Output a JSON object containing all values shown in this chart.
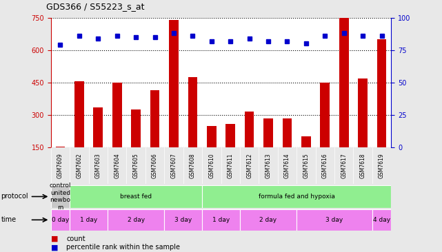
{
  "title": "GDS366 / S55223_s_at",
  "samples": [
    "GSM7609",
    "GSM7602",
    "GSM7603",
    "GSM7604",
    "GSM7605",
    "GSM7606",
    "GSM7607",
    "GSM7608",
    "GSM7610",
    "GSM7611",
    "GSM7612",
    "GSM7613",
    "GSM7614",
    "GSM7615",
    "GSM7616",
    "GSM7617",
    "GSM7618",
    "GSM7619"
  ],
  "counts": [
    155,
    455,
    335,
    450,
    325,
    415,
    740,
    475,
    250,
    260,
    315,
    285,
    285,
    200,
    450,
    750,
    470,
    650
  ],
  "percentiles": [
    79,
    86,
    84,
    86,
    85,
    85,
    88,
    86,
    82,
    82,
    84,
    82,
    82,
    80,
    86,
    88,
    86,
    86
  ],
  "ylim_left": [
    150,
    750
  ],
  "ylim_right": [
    0,
    100
  ],
  "yticks_left": [
    150,
    300,
    450,
    600,
    750
  ],
  "yticks_right": [
    0,
    25,
    50,
    75,
    100
  ],
  "bar_color": "#cc0000",
  "dot_color": "#0000cc",
  "background_color": "#e8e8e8",
  "plot_bg": "#ffffff",
  "protocol_row": {
    "label": "protocol",
    "segments": [
      {
        "text": "control\nunited\nnewbo\nrn",
        "color": "#c8c8c8",
        "start": 0,
        "end": 1
      },
      {
        "text": "breast fed",
        "color": "#90ee90",
        "start": 1,
        "end": 8
      },
      {
        "text": "formula fed and hypoxia",
        "color": "#90ee90",
        "start": 8,
        "end": 18
      }
    ]
  },
  "time_row": {
    "label": "time",
    "segments": [
      {
        "text": "0 day",
        "color": "#ee82ee",
        "start": 0,
        "end": 1
      },
      {
        "text": "1 day",
        "color": "#ee82ee",
        "start": 1,
        "end": 3
      },
      {
        "text": "2 day",
        "color": "#ee82ee",
        "start": 3,
        "end": 6
      },
      {
        "text": "3 day",
        "color": "#ee82ee",
        "start": 6,
        "end": 8
      },
      {
        "text": "1 day",
        "color": "#ee82ee",
        "start": 8,
        "end": 10
      },
      {
        "text": "2 day",
        "color": "#ee82ee",
        "start": 10,
        "end": 13
      },
      {
        "text": "3 day",
        "color": "#ee82ee",
        "start": 13,
        "end": 17
      },
      {
        "text": "4 day",
        "color": "#ee82ee",
        "start": 17,
        "end": 18
      }
    ]
  }
}
